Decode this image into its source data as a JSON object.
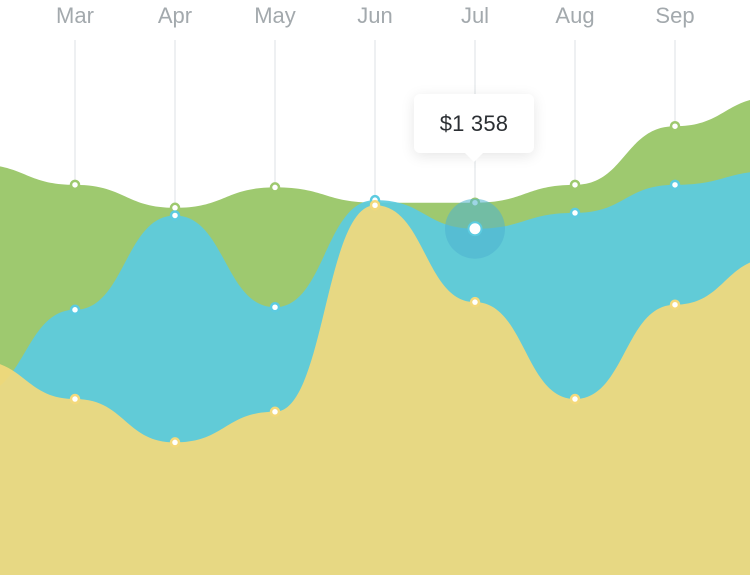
{
  "chart_data": {
    "type": "area",
    "categories": [
      "Mar",
      "Apr",
      "May",
      "Jun",
      "Jul",
      "Aug",
      "Sep"
    ],
    "series": [
      {
        "color": "#9ec96f",
        "values": [
          1530,
          1440,
          1520,
          1460,
          1460,
          1530,
          1760
        ]
      },
      {
        "color": "#5ccbe0",
        "values": [
          1040,
          1410,
          1050,
          1470,
          1358,
          1420,
          1530
        ]
      },
      {
        "color": "#f3d97c",
        "values": [
          690,
          520,
          640,
          1450,
          1070,
          690,
          1060
        ]
      }
    ],
    "ylim": [
      0,
      2200
    ],
    "grid": true,
    "highlight": {
      "series_index": 1,
      "category_index": 4
    }
  },
  "tooltip": {
    "value": "$1 358"
  }
}
